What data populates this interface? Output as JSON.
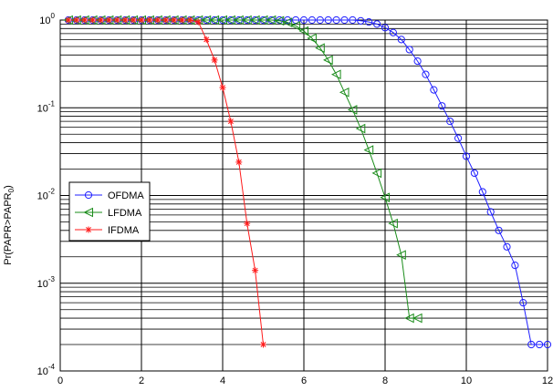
{
  "chart_data": {
    "type": "line",
    "title": "",
    "xlabel": "",
    "ylabel": "Pr(PAPR>PAPR0)",
    "ylabel_parts": {
      "main": "Pr(PAPR>PAPR",
      "sub": "0",
      "close": ")"
    },
    "xlim": [
      0,
      12
    ],
    "ylim": [
      0.0001,
      1
    ],
    "yscale": "log",
    "grid": true,
    "legend_position": "left",
    "x_ticks": [
      "0",
      "2",
      "4",
      "6",
      "8",
      "10",
      "12"
    ],
    "y_ticks": [
      {
        "base": "10",
        "exp": "0"
      },
      {
        "base": "10",
        "exp": "-1"
      },
      {
        "base": "10",
        "exp": "-2"
      },
      {
        "base": "10",
        "exp": "-3"
      },
      {
        "base": "10",
        "exp": "-4"
      }
    ],
    "series": [
      {
        "name": "OFDMA",
        "color": "#1f1fff",
        "marker": "circle",
        "x": [
          0.2,
          0.4,
          0.6,
          0.8,
          1.0,
          1.2,
          1.4,
          1.6,
          1.8,
          2.0,
          2.2,
          2.4,
          2.6,
          2.8,
          3.0,
          3.2,
          3.4,
          3.6,
          3.8,
          4.0,
          4.2,
          4.4,
          4.6,
          4.8,
          5.0,
          5.2,
          5.4,
          5.6,
          5.8,
          6.0,
          6.2,
          6.4,
          6.6,
          6.8,
          7.0,
          7.2,
          7.4,
          7.6,
          7.8,
          8.0,
          8.2,
          8.4,
          8.6,
          8.8,
          9.0,
          9.2,
          9.4,
          9.6,
          9.8,
          10.0,
          10.2,
          10.4,
          10.6,
          10.8,
          11.0,
          11.2,
          11.4,
          11.6,
          11.8,
          12.0
        ],
        "y": [
          1,
          1,
          1,
          1,
          1,
          1,
          1,
          1,
          1,
          1,
          1,
          1,
          1,
          1,
          1,
          1,
          1,
          1,
          1,
          1,
          1,
          1,
          1,
          1,
          1,
          1,
          1,
          1,
          1,
          1,
          1,
          1,
          1,
          1,
          1,
          1,
          0.98,
          0.95,
          0.9,
          0.82,
          0.72,
          0.6,
          0.46,
          0.34,
          0.24,
          0.16,
          0.105,
          0.07,
          0.045,
          0.028,
          0.018,
          0.011,
          0.0065,
          0.004,
          0.0026,
          0.0016,
          0.0006,
          0.0002,
          0.0002,
          0.0002
        ]
      },
      {
        "name": "LFDMA",
        "color": "#1a8c1a",
        "marker": "triangle-left",
        "x": [
          0.2,
          0.4,
          0.6,
          0.8,
          1.0,
          1.2,
          1.4,
          1.6,
          1.8,
          2.0,
          2.2,
          2.4,
          2.6,
          2.8,
          3.0,
          3.2,
          3.4,
          3.6,
          3.8,
          4.0,
          4.2,
          4.4,
          4.6,
          4.8,
          5.0,
          5.2,
          5.4,
          5.6,
          5.8,
          6.0,
          6.2,
          6.4,
          6.6,
          6.8,
          7.0,
          7.2,
          7.4,
          7.6,
          7.8,
          8.0,
          8.2,
          8.4,
          8.6,
          8.8
        ],
        "y": [
          1,
          1,
          1,
          1,
          1,
          1,
          1,
          1,
          1,
          1,
          1,
          1,
          1,
          1,
          1,
          1,
          1,
          1,
          1,
          1,
          1,
          1,
          1,
          1,
          1,
          1,
          0.98,
          0.94,
          0.86,
          0.75,
          0.62,
          0.48,
          0.35,
          0.24,
          0.15,
          0.095,
          0.058,
          0.033,
          0.018,
          0.0095,
          0.0048,
          0.0021,
          0.0004,
          0.0004
        ]
      },
      {
        "name": "IFDMA",
        "color": "#ff1a1a",
        "marker": "star",
        "x": [
          0.2,
          0.4,
          0.6,
          0.8,
          1.0,
          1.2,
          1.4,
          1.6,
          1.8,
          2.0,
          2.2,
          2.4,
          2.6,
          2.8,
          3.0,
          3.2,
          3.4,
          3.6,
          3.8,
          4.0,
          4.2,
          4.4,
          4.6,
          4.8,
          5.0
        ],
        "y": [
          1,
          1,
          1,
          1,
          1,
          1,
          1,
          1,
          1,
          1,
          1,
          1,
          1,
          1,
          1,
          1,
          0.95,
          0.6,
          0.35,
          0.17,
          0.07,
          0.024,
          0.0048,
          0.0014,
          0.0002
        ]
      }
    ]
  }
}
